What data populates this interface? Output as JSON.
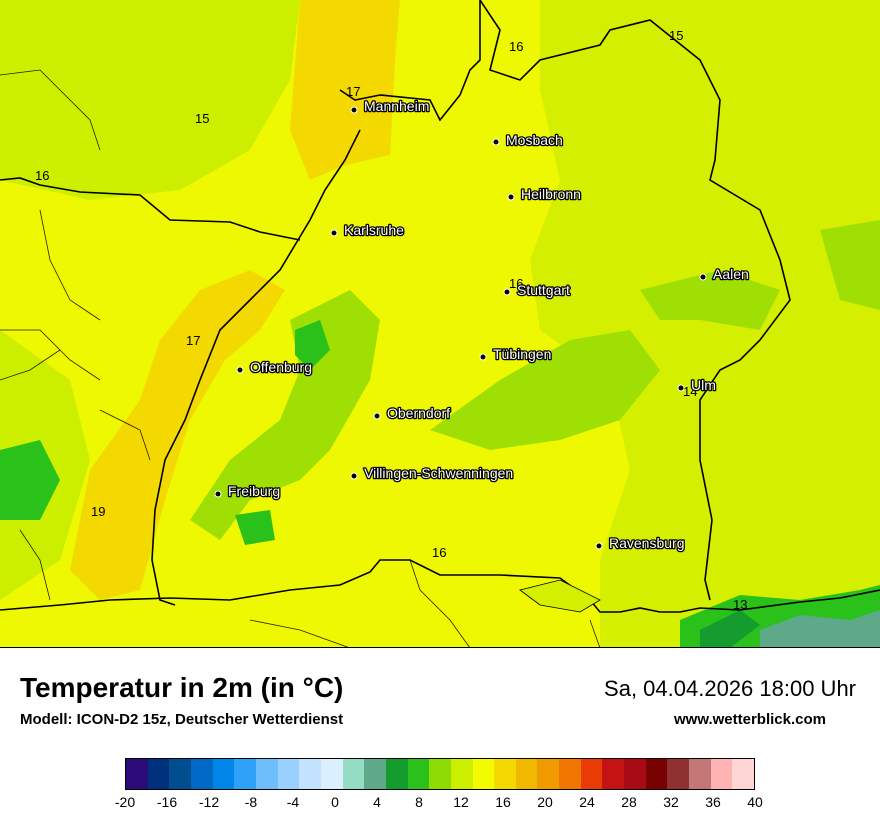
{
  "map": {
    "isotherm_labels": [
      {
        "text": "17",
        "id": "mannheim-north"
      },
      {
        "text": "16",
        "id": "northeast"
      },
      {
        "text": "15",
        "id": "far-northeast"
      },
      {
        "text": "15",
        "id": "northwest"
      },
      {
        "text": "16",
        "id": "west-edge"
      },
      {
        "text": "16",
        "id": "stuttgart"
      },
      {
        "text": "17",
        "id": "rhine-valley"
      },
      {
        "text": "14",
        "id": "ulm"
      },
      {
        "text": "19",
        "id": "southwest"
      },
      {
        "text": "16",
        "id": "lake-constance"
      },
      {
        "text": "13",
        "id": "alps"
      }
    ],
    "cities": [
      "Mannheim",
      "Mosbach",
      "Heilbronn",
      "Karlsruhe",
      "Stuttgart",
      "Aalen",
      "Tübingen",
      "Offenburg",
      "Ulm",
      "Oberndorf",
      "Villingen-Schwenningen",
      "Freiburg",
      "Ravensburg"
    ]
  },
  "footer": {
    "title": "Temperatur in 2m (in °C)",
    "model": "Modell: ICON-D2 15z, Deutscher Wetterdienst",
    "datetime": "Sa, 04.04.2026 18:00 Uhr",
    "website": "www.wetterblick.com"
  },
  "legend": {
    "colors": [
      "#2b0a7a",
      "#002f7c",
      "#004d8f",
      "#0068c5",
      "#0085e8",
      "#2ea1f8",
      "#6fbefc",
      "#9ad0fd",
      "#c2e2fe",
      "#dcefff",
      "#95dcc4",
      "#5ea98a",
      "#159c2e",
      "#29c11a",
      "#8fdb04",
      "#ccef00",
      "#f4fb00",
      "#f3d900",
      "#f1b800",
      "#f09a00",
      "#f07600",
      "#e83b06",
      "#c41313",
      "#a90b16",
      "#790000",
      "#8f3131",
      "#c47777",
      "#ffb3b3",
      "#ffd6d6"
    ],
    "ticks": [
      "-20",
      "-16",
      "-12",
      "-8",
      "-4",
      "0",
      "4",
      "8",
      "12",
      "16",
      "20",
      "24",
      "28",
      "32",
      "36",
      "40"
    ]
  }
}
